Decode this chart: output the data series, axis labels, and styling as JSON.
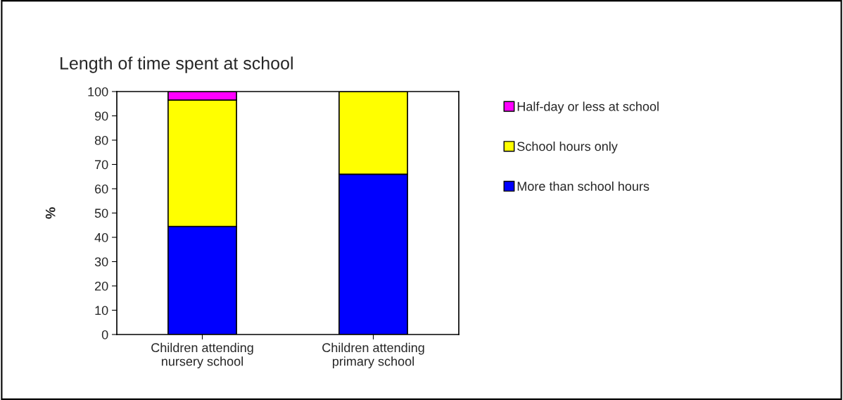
{
  "chart_data": {
    "type": "bar",
    "title": "Length of time spent at school",
    "ylabel": "%",
    "categories": [
      "Children attending\nnursery school",
      "Children attending\nprimary school"
    ],
    "stacked": true,
    "ylim": [
      0,
      100
    ],
    "yticks": [
      0,
      10,
      20,
      30,
      40,
      50,
      60,
      70,
      80,
      90,
      100
    ],
    "grid": false,
    "legend": "right",
    "series": [
      {
        "name": "More than school hours",
        "color": "#0000ff",
        "values": [
          44.5,
          66
        ]
      },
      {
        "name": "School hours only",
        "color": "#ffff00",
        "values": [
          52,
          34
        ]
      },
      {
        "name": "Half-day or less at school",
        "color": "#ff00ff",
        "values": [
          3.5,
          null
        ]
      }
    ]
  }
}
